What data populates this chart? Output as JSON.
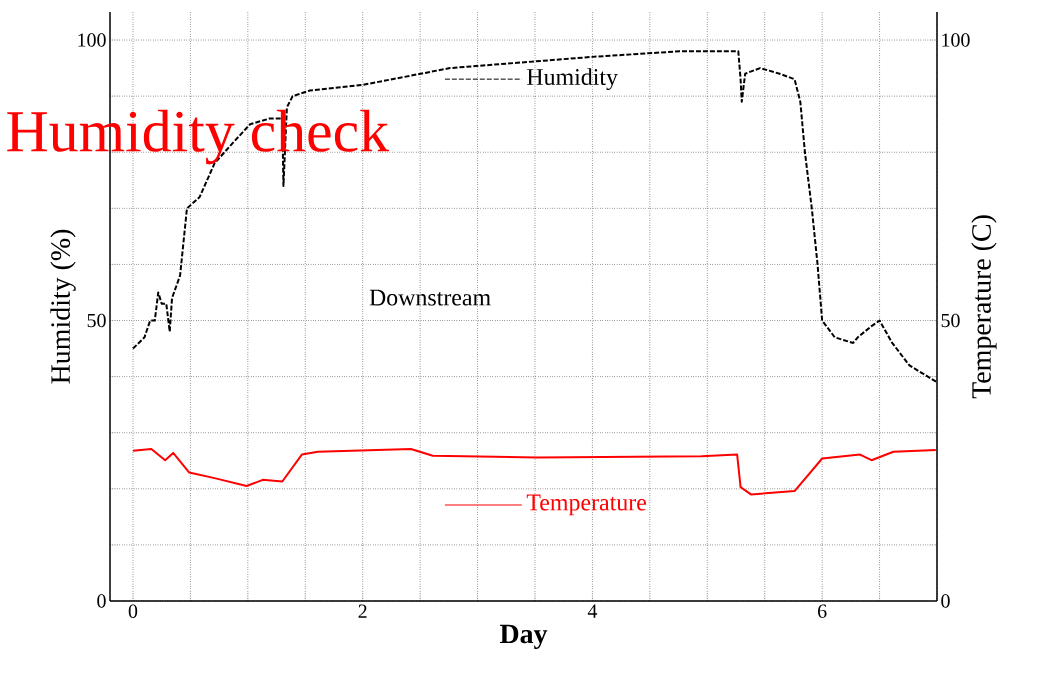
{
  "chart_data": {
    "type": "line",
    "title": "Humidity check",
    "xlabel": "Day",
    "ylabel": "Humidity (%)",
    "y2label": "Temperature (C)",
    "annotations": [
      "Downstream"
    ],
    "xlim": [
      -0.2,
      7
    ],
    "ylim": [
      0,
      105
    ],
    "y2lim": [
      0,
      105
    ],
    "xticks": [
      0,
      {
        "value": 0.5,
        "label": null
      },
      {
        "value": 1,
        "label": null
      },
      {
        "value": 1.5,
        "label": null
      },
      2,
      {
        "value": 2.5,
        "label": null
      },
      {
        "value": 3,
        "label": null
      },
      {
        "value": 3.5,
        "label": null
      },
      4,
      {
        "value": 4.5,
        "label": null
      },
      {
        "value": 5,
        "label": null
      },
      {
        "value": 5.5,
        "label": null
      },
      6,
      {
        "value": 6.5,
        "label": null
      },
      {
        "value": 7,
        "label": null
      }
    ],
    "yticks": [
      0,
      {
        "value": 10,
        "label": null
      },
      {
        "value": 20,
        "label": null
      },
      {
        "value": 30,
        "label": null
      },
      {
        "value": 40,
        "label": null
      },
      50,
      {
        "value": 60,
        "label": null
      },
      {
        "value": 70,
        "label": null
      },
      {
        "value": 80,
        "label": null
      },
      {
        "value": 90,
        "label": null
      },
      100
    ],
    "y2ticks": [
      0,
      {
        "value": 10,
        "label": null
      },
      {
        "value": 20,
        "label": null
      },
      {
        "value": 30,
        "label": null
      },
      {
        "value": 40,
        "label": null
      },
      50,
      {
        "value": 60,
        "label": null
      },
      {
        "value": 70,
        "label": null
      },
      {
        "value": 80,
        "label": null
      },
      {
        "value": 90,
        "label": null
      },
      100
    ],
    "grid": true,
    "legend": "center",
    "series": [
      {
        "name": "Humidity",
        "color": "#000000",
        "line_style": "dashed",
        "x": [
          0,
          0.1,
          0.15,
          0.19,
          0.22,
          0.25,
          0.29,
          0.32,
          0.34,
          0.41,
          0.47,
          0.58,
          0.71,
          0.84,
          1.02,
          1.19,
          1.3,
          1.31,
          1.34,
          1.39,
          1.54,
          2.0,
          2.76,
          4.0,
          4.76,
          5.27,
          5.29,
          5.3,
          5.33,
          5.46,
          5.63,
          5.76,
          5.81,
          5.85,
          5.91,
          5.96,
          6.0,
          6.11,
          6.27,
          6.31,
          6.43,
          6.5,
          6.61,
          6.76,
          7.0
        ],
        "values": [
          45,
          47,
          50,
          50,
          55,
          53,
          53,
          48,
          54,
          58,
          70,
          72,
          78,
          81,
          85,
          86,
          86,
          74,
          88,
          90,
          91,
          92,
          95,
          97,
          98,
          98,
          93,
          89,
          94,
          95,
          94,
          93,
          89,
          80,
          70,
          60,
          50,
          47,
          46,
          47,
          49,
          50,
          46,
          42,
          39
        ]
      },
      {
        "name": "Temperature",
        "color": "#ff0000",
        "line_style": "solid",
        "axis": "y2",
        "x": [
          0,
          0.16,
          0.28,
          0.35,
          0.49,
          0.71,
          0.99,
          1.13,
          1.3,
          1.47,
          1.61,
          2.42,
          2.61,
          3.52,
          4.95,
          5.26,
          5.29,
          5.38,
          5.76,
          6.0,
          6.33,
          6.43,
          6.62,
          6.99
        ],
        "values": [
          26.8,
          27.1,
          25.1,
          26.4,
          22.9,
          21.9,
          20.5,
          21.6,
          21.3,
          26.1,
          26.6,
          27.1,
          25.9,
          25.6,
          25.8,
          26.1,
          20.3,
          19.0,
          19.6,
          25.4,
          26.1,
          25.1,
          26.6,
          26.9
        ]
      }
    ]
  }
}
